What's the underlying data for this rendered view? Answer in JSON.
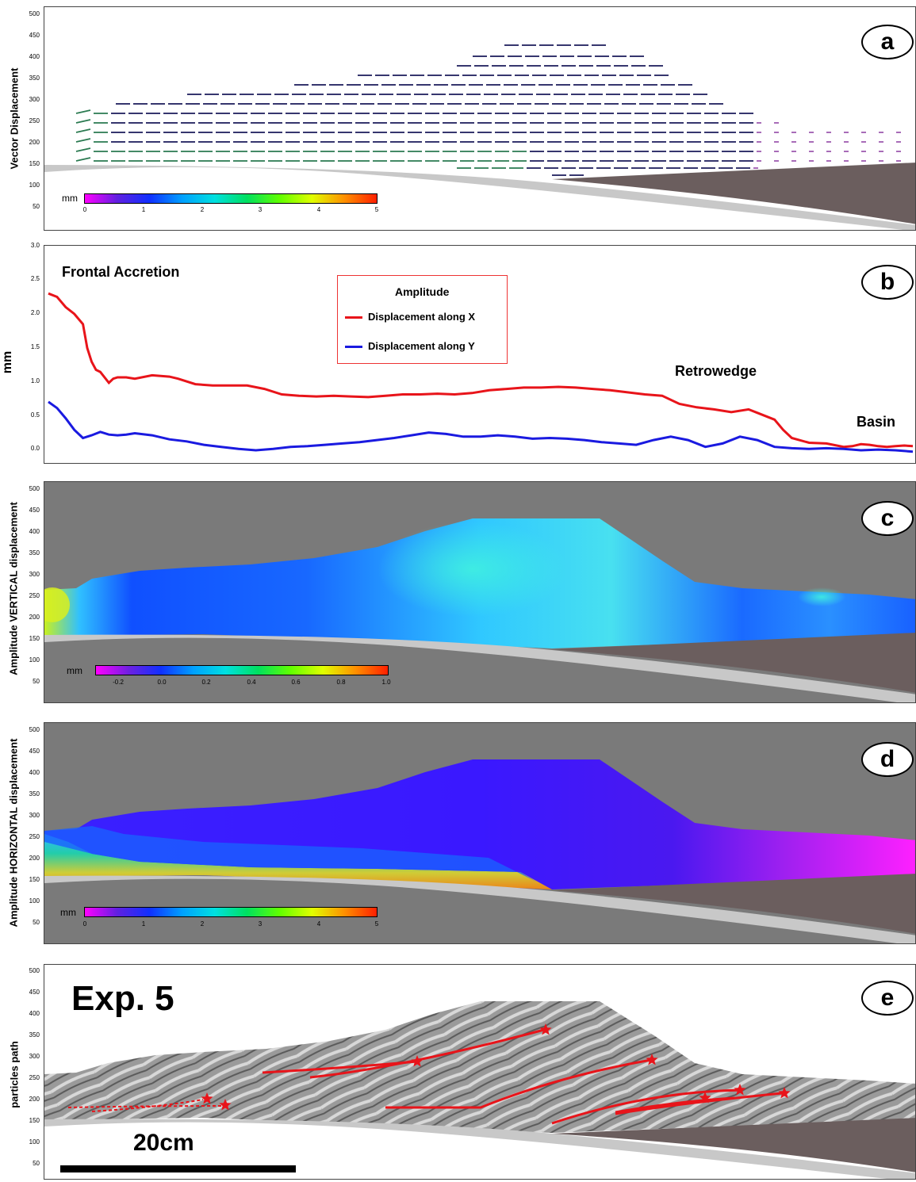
{
  "panels": {
    "a": {
      "badge": "a",
      "ylabel": "Vector Displacement",
      "ticks": [
        "500",
        "450",
        "400",
        "350",
        "300",
        "250",
        "200",
        "150",
        "100",
        "50"
      ],
      "colorbar": {
        "unit": "mm",
        "ticks": [
          "0",
          "1",
          "2",
          "3",
          "4",
          "5"
        ]
      }
    },
    "b": {
      "badge": "b",
      "ylabel": "mm",
      "ticks": [
        "3.0",
        "2.5",
        "2.0",
        "1.5",
        "1.0",
        "0.5",
        "0.0"
      ]
    },
    "c": {
      "badge": "c",
      "ylabel": "Amplitude VERTICAL displacement",
      "ticks": [
        "500",
        "450",
        "400",
        "350",
        "300",
        "250",
        "200",
        "150",
        "100",
        "50"
      ],
      "colorbar": {
        "unit": "mm",
        "ticks": [
          "-0.2",
          "0.0",
          "0.2",
          "0.4",
          "0.6",
          "0.8",
          "1.0"
        ]
      }
    },
    "d": {
      "badge": "d",
      "ylabel": "Amplitude HORIZONTAL displacement",
      "ticks": [
        "500",
        "450",
        "400",
        "350",
        "300",
        "250",
        "200",
        "150",
        "100",
        "50"
      ],
      "colorbar": {
        "unit": "mm",
        "ticks": [
          "0",
          "1",
          "2",
          "3",
          "4",
          "5"
        ]
      }
    },
    "e": {
      "badge": "e",
      "ylabel": "particles path",
      "ticks": [
        "500",
        "450",
        "400",
        "350",
        "300",
        "250",
        "200",
        "150",
        "100",
        "50"
      ],
      "experiment": "Exp. 5",
      "scale": "20cm"
    }
  },
  "annotations": {
    "frontal": "Frontal Accretion",
    "retrowedge": "Retrowedge",
    "basin": "Basin"
  },
  "legend": {
    "title": "Amplitude",
    "items": [
      "Displacement along X",
      "Displacement along Y"
    ]
  },
  "colors": {
    "x_series": "#e8141a",
    "y_series": "#1a1ae0",
    "background_grey": "#7a7a7a",
    "basement": "#6b5e5e",
    "substrate": "#c8c8c8"
  },
  "chart_data": {
    "type": "line",
    "ylabel": "mm",
    "ylim": [
      0,
      3.0
    ],
    "x_range": [
      0,
      100
    ],
    "series": [
      {
        "name": "Displacement along X",
        "color": "#e8141a",
        "x": [
          0,
          1,
          2,
          3,
          4,
          4.5,
          5,
          5.5,
          6,
          7,
          7.5,
          8,
          9,
          10,
          12,
          14,
          15,
          17,
          19,
          21,
          23,
          25,
          27,
          29,
          31,
          33,
          35,
          37,
          39,
          41,
          43,
          45,
          47,
          49,
          51,
          53,
          55,
          57,
          59,
          61,
          63,
          65,
          67,
          69,
          71,
          73,
          75,
          77,
          79,
          81,
          82,
          84,
          85,
          86,
          88,
          90,
          92,
          93,
          94,
          95,
          96,
          97,
          98,
          99,
          100
        ],
        "values": [
          2.3,
          2.25,
          2.1,
          2.0,
          1.85,
          1.5,
          1.3,
          1.18,
          1.15,
          0.99,
          1.05,
          1.07,
          1.07,
          1.05,
          1.1,
          1.08,
          1.05,
          0.97,
          0.95,
          0.95,
          0.95,
          0.9,
          0.82,
          0.8,
          0.79,
          0.8,
          0.79,
          0.78,
          0.8,
          0.82,
          0.82,
          0.83,
          0.82,
          0.84,
          0.88,
          0.9,
          0.92,
          0.92,
          0.93,
          0.92,
          0.9,
          0.88,
          0.85,
          0.82,
          0.8,
          0.68,
          0.63,
          0.6,
          0.56,
          0.6,
          0.55,
          0.45,
          0.3,
          0.18,
          0.11,
          0.1,
          0.05,
          0.06,
          0.09,
          0.08,
          0.06,
          0.05,
          0.06,
          0.07,
          0.06
        ]
      },
      {
        "name": "Displacement along Y",
        "color": "#1a1ae0",
        "x": [
          0,
          1,
          2,
          3,
          4,
          5,
          6,
          7,
          8,
          9,
          10,
          12,
          14,
          16,
          18,
          20,
          22,
          24,
          26,
          28,
          30,
          32,
          34,
          36,
          38,
          40,
          42,
          44,
          46,
          48,
          50,
          52,
          54,
          56,
          58,
          60,
          62,
          64,
          66,
          68,
          70,
          72,
          74,
          76,
          78,
          80,
          82,
          84,
          86,
          88,
          90,
          92,
          94,
          96,
          98,
          100
        ],
        "values": [
          0.71,
          0.62,
          0.47,
          0.3,
          0.18,
          0.22,
          0.27,
          0.23,
          0.22,
          0.23,
          0.25,
          0.22,
          0.16,
          0.13,
          0.08,
          0.05,
          0.02,
          0.0,
          0.02,
          0.05,
          0.06,
          0.08,
          0.1,
          0.12,
          0.15,
          0.18,
          0.22,
          0.26,
          0.24,
          0.2,
          0.2,
          0.22,
          0.2,
          0.17,
          0.18,
          0.17,
          0.15,
          0.12,
          0.1,
          0.08,
          0.15,
          0.2,
          0.15,
          0.05,
          0.1,
          0.2,
          0.15,
          0.05,
          0.03,
          0.02,
          0.03,
          0.02,
          0.0,
          0.01,
          0.0,
          -0.02
        ]
      }
    ]
  }
}
